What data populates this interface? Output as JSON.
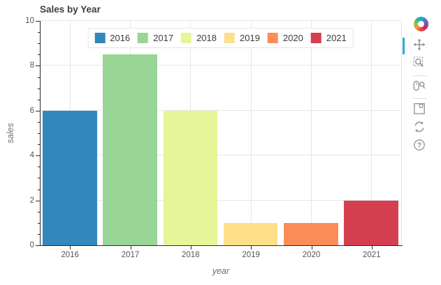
{
  "chart_data": {
    "type": "bar",
    "title": "Sales by Year",
    "categories": [
      "2016",
      "2017",
      "2018",
      "2019",
      "2020",
      "2021"
    ],
    "values": [
      6,
      8.5,
      6,
      1,
      1,
      2
    ],
    "bar_colors": [
      "#3288bd",
      "#99d594",
      "#e6f598",
      "#fee08b",
      "#fc8d59",
      "#d53e4f"
    ],
    "xlabel": "year",
    "ylabel": "sales",
    "ylim": [
      0,
      10
    ],
    "y_major_ticks": [
      0,
      2,
      4,
      6,
      8,
      10
    ],
    "y_minor_step": 0.5,
    "bar_width_fraction": 0.9,
    "grid": true,
    "legend": {
      "position": "top-center",
      "entries": [
        {
          "label": "2016",
          "color": "#3288bd"
        },
        {
          "label": "2017",
          "color": "#99d594"
        },
        {
          "label": "2018",
          "color": "#e6f598"
        },
        {
          "label": "2019",
          "color": "#fee08b"
        },
        {
          "label": "2020",
          "color": "#fc8d59"
        },
        {
          "label": "2021",
          "color": "#d53e4f"
        }
      ]
    }
  },
  "toolbar": {
    "logo": "bokeh-logo",
    "active_tool": "pan",
    "active_indicator_color": "#26aae1",
    "tools": [
      "pan",
      "box-zoom",
      "wheel-zoom",
      "save",
      "reset",
      "help"
    ]
  }
}
